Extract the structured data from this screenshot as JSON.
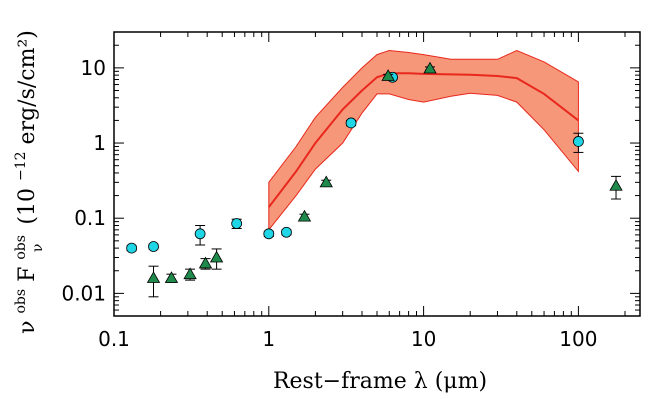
{
  "chart_data": {
    "type": "scatter",
    "title": "",
    "xlabel": "Rest−frame λ (μm)",
    "ylabel": {
      "nu": "ν",
      "nu_sup": "obs",
      "F": " F",
      "F_sup": "obs",
      "F_sub": "ν",
      "units_open": " (10",
      "units_exp": "−12",
      "units_close": " erg/s/cm²)"
    },
    "x_scale": "log",
    "y_scale": "log",
    "xlim": [
      0.1,
      250
    ],
    "ylim": [
      0.005,
      30
    ],
    "x_ticks": [
      {
        "value": 0.1,
        "label": "0.1"
      },
      {
        "value": 1,
        "label": "1"
      },
      {
        "value": 10,
        "label": "10"
      },
      {
        "value": 100,
        "label": "100"
      }
    ],
    "y_ticks": [
      {
        "value": 0.01,
        "label": "0.01"
      },
      {
        "value": 0.1,
        "label": "0.1"
      },
      {
        "value": 1,
        "label": "1"
      },
      {
        "value": 10,
        "label": "10"
      }
    ],
    "grid": false,
    "band": {
      "color": "#f7977a",
      "edge_color": "#e8281c",
      "x": [
        1.0,
        1.5,
        2.0,
        3.0,
        4.0,
        5.0,
        6.0,
        8.0,
        10,
        15,
        20,
        30,
        40,
        60,
        100
      ],
      "upper": [
        0.3,
        0.9,
        2.2,
        5.5,
        10,
        15,
        17,
        16,
        15,
        13,
        13,
        13,
        17,
        12,
        6.5
      ],
      "lower": [
        0.07,
        0.2,
        0.45,
        1.0,
        2.5,
        4.5,
        4.5,
        3.8,
        3.5,
        4.2,
        4.6,
        4.3,
        3.5,
        1.5,
        0.42
      ]
    },
    "model_line": {
      "color": "#e8281c",
      "x": [
        1.0,
        1.5,
        2.0,
        3.0,
        4.0,
        5.0,
        6.0,
        8.0,
        10,
        20,
        30,
        40,
        60,
        100
      ],
      "y": [
        0.14,
        0.42,
        1.0,
        2.8,
        5.0,
        7.5,
        8.5,
        8.5,
        8.3,
        8.1,
        7.8,
        7.3,
        4.5,
        2.0
      ]
    },
    "series": [
      {
        "marker": "circle",
        "color": "#1ed6e6",
        "points": [
          {
            "x": 0.13,
            "y": 0.04,
            "err": 0.003
          },
          {
            "x": 0.18,
            "y": 0.042,
            "err": 0.003
          },
          {
            "x": 0.36,
            "y": 0.062,
            "err": 0.018
          },
          {
            "x": 0.62,
            "y": 0.085,
            "err": 0.012
          },
          {
            "x": 1.0,
            "y": 0.062,
            "err": 0.005
          },
          {
            "x": 1.3,
            "y": 0.065,
            "err": 0.005
          },
          {
            "x": 3.4,
            "y": 1.85,
            "err": 0.15
          },
          {
            "x": 6.3,
            "y": 7.5,
            "err": 0.5
          },
          {
            "x": 100,
            "y": 1.05,
            "err": 0.3
          }
        ]
      },
      {
        "marker": "triangle",
        "color": "#1f8a4c",
        "points": [
          {
            "x": 0.18,
            "y": 0.016,
            "err": 0.007
          },
          {
            "x": 0.235,
            "y": 0.016,
            "err": 0.002
          },
          {
            "x": 0.31,
            "y": 0.018,
            "err": 0.003
          },
          {
            "x": 0.39,
            "y": 0.025,
            "err": 0.004
          },
          {
            "x": 0.46,
            "y": 0.03,
            "err": 0.009
          },
          {
            "x": 1.7,
            "y": 0.105,
            "err": 0.008
          },
          {
            "x": 2.35,
            "y": 0.3,
            "err": 0.02
          },
          {
            "x": 5.9,
            "y": 7.8,
            "err": 0.4
          },
          {
            "x": 11,
            "y": 9.8,
            "err": 0.5
          },
          {
            "x": 175,
            "y": 0.27,
            "err": 0.09
          }
        ]
      }
    ]
  }
}
